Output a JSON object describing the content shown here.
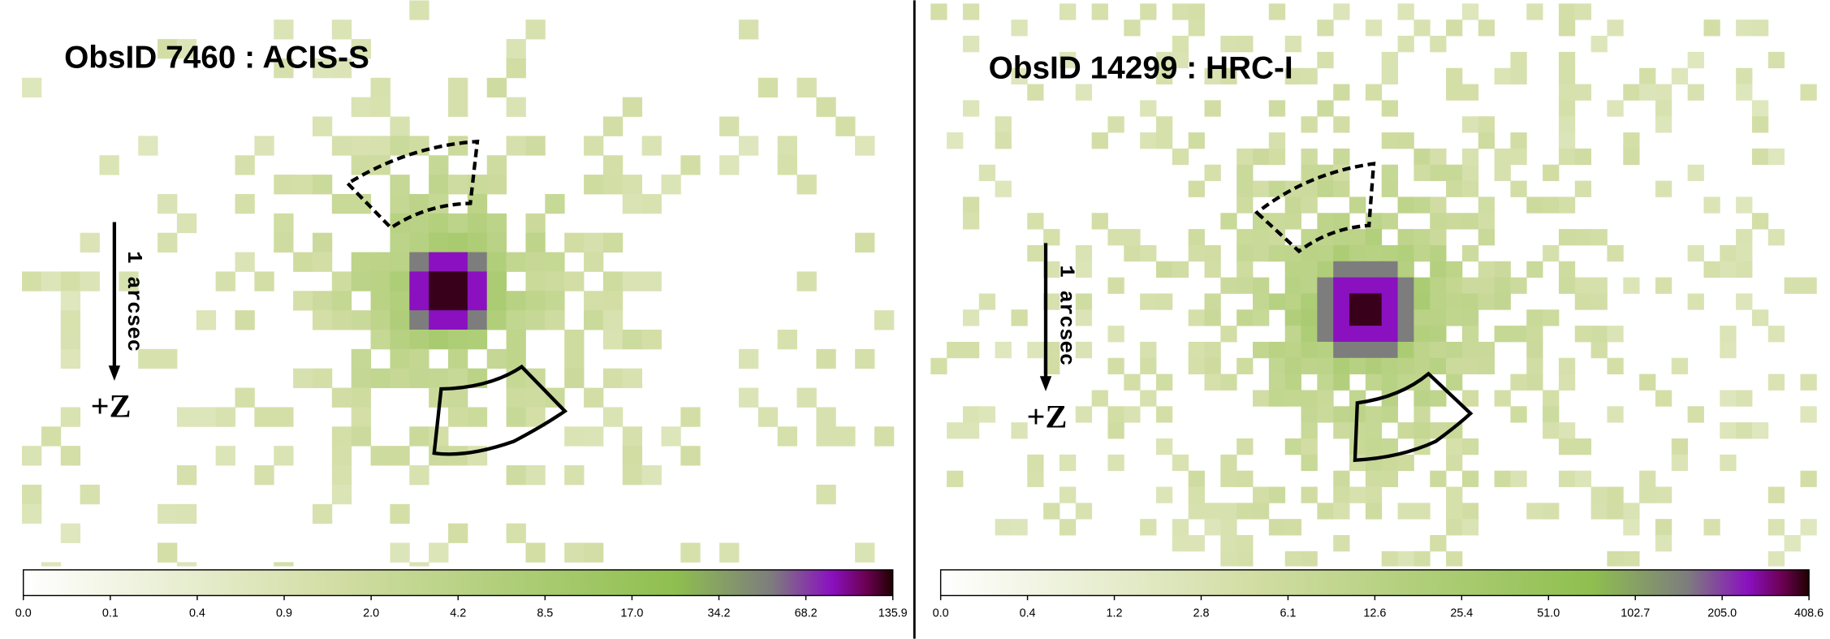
{
  "panels": [
    {
      "title": "ObsID 7460 : ACIS-S",
      "scale_label": "1 arcsec",
      "direction_label": "+Z",
      "colorbar": {
        "ticks": [
          "0.0",
          "0.1",
          "0.4",
          "0.9",
          "2.0",
          "4.2",
          "8.5",
          "17.0",
          "34.2",
          "68.2",
          "135.9"
        ]
      }
    },
    {
      "title": "ObsID 14299 : HRC-I",
      "scale_label": "1 arcsec",
      "direction_label": "+Z",
      "colorbar": {
        "ticks": [
          "0.0",
          "0.4",
          "1.2",
          "2.8",
          "6.1",
          "12.6",
          "25.4",
          "51.0",
          "102.7",
          "205.0",
          "408.6"
        ]
      }
    }
  ]
}
